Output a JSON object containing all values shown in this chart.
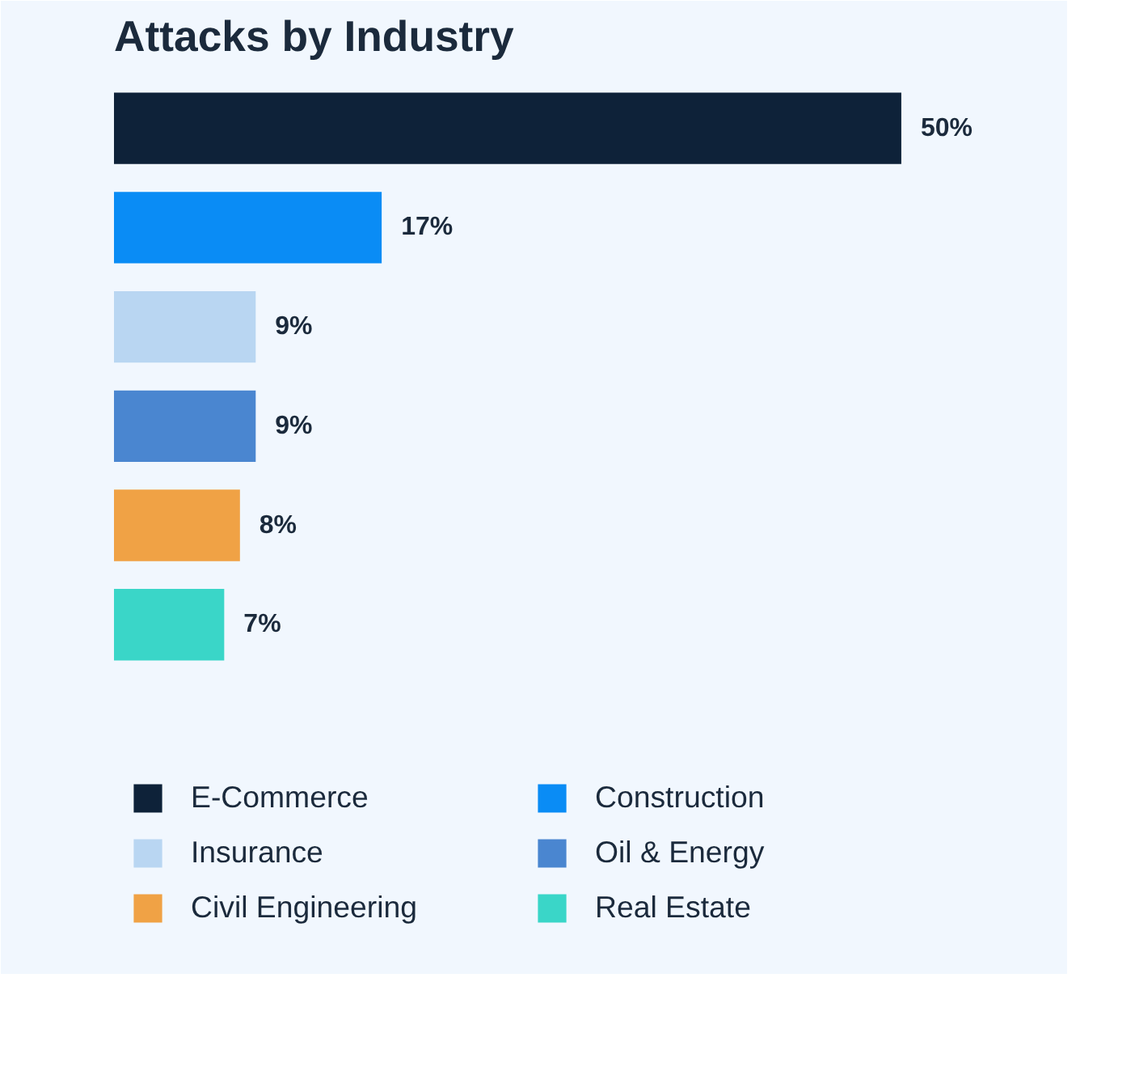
{
  "chart_data": {
    "type": "bar",
    "orientation": "horizontal",
    "title": "Attacks by Industry",
    "categories": [
      null,
      null,
      null,
      null,
      null,
      null
    ],
    "series": [
      {
        "name": "E-Commerce",
        "color": "#0e2239",
        "values": [
          50,
          null,
          null,
          null,
          null,
          null
        ],
        "value_labels": [
          "50%",
          null,
          null,
          null,
          null,
          null
        ]
      },
      {
        "name": "Construction",
        "color": "#0a8cf5",
        "values": [
          null,
          17,
          null,
          null,
          null,
          null
        ],
        "value_labels": [
          null,
          "17%",
          null,
          null,
          null,
          null
        ]
      },
      {
        "name": "Insurance",
        "color": "#b9d6f2",
        "values": [
          null,
          null,
          9,
          null,
          null,
          null
        ],
        "value_labels": [
          null,
          null,
          "9%",
          null,
          null,
          null
        ]
      },
      {
        "name": "Oil & Energy",
        "color": "#4a86d0",
        "values": [
          null,
          null,
          null,
          9,
          null,
          null
        ],
        "value_labels": [
          null,
          null,
          null,
          "9%",
          null,
          null
        ]
      },
      {
        "name": "Civil Engineering",
        "color": "#f0a245",
        "values": [
          null,
          null,
          null,
          null,
          8,
          null
        ],
        "value_labels": [
          null,
          null,
          null,
          null,
          "8%",
          null
        ]
      },
      {
        "name": "Real Estate",
        "color": "#3ad6c8",
        "values": [
          null,
          null,
          null,
          null,
          null,
          7
        ],
        "value_labels": [
          null,
          null,
          null,
          null,
          null,
          "7%"
        ]
      }
    ],
    "stacked": true,
    "legend": "bottom",
    "tick_labels": false
  }
}
